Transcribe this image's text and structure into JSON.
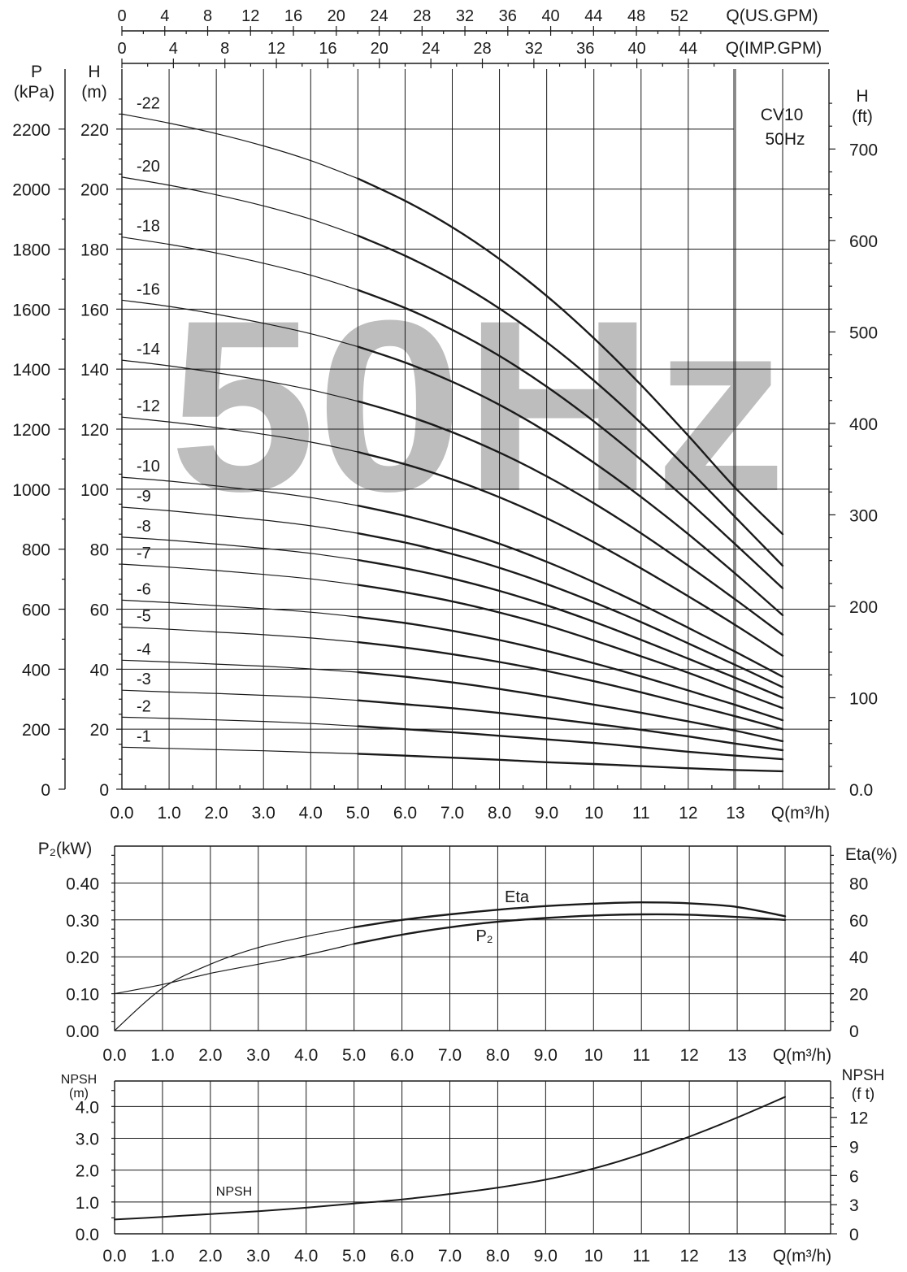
{
  "colors": {
    "line": "#1a1a1a",
    "grid": "#1a1a1a",
    "watermark": "#bdbdbd",
    "background": "#ffffff"
  },
  "chart_data": [
    {
      "type": "line",
      "id": "head",
      "watermark": "50Hz",
      "annotation": [
        "CV10",
        "50Hz"
      ],
      "x_label": "Q(m³/h)",
      "x_ticks": [
        "0.0",
        "1.0",
        "2.0",
        "3.0",
        "4.0",
        "5.0",
        "6.0",
        "7.0",
        "8.0",
        "9.0",
        "10",
        "11",
        "12",
        "13"
      ],
      "xlim": [
        0,
        14
      ],
      "top_axes": [
        {
          "label": "Q(US.GPM)",
          "ticks": [
            "0",
            "4",
            "8",
            "12",
            "16",
            "20",
            "24",
            "28",
            "32",
            "36",
            "40",
            "44",
            "48",
            "52"
          ],
          "values": [
            0,
            4,
            8,
            12,
            16,
            20,
            24,
            28,
            32,
            36,
            40,
            44,
            48,
            52
          ]
        },
        {
          "label": "Q(IMP.GPM)",
          "ticks": [
            "0",
            "4",
            "8",
            "12",
            "16",
            "20",
            "24",
            "28",
            "32",
            "36",
            "40",
            "44"
          ],
          "values": [
            0,
            4,
            8,
            12,
            16,
            20,
            24,
            28,
            32,
            36,
            40,
            44
          ]
        }
      ],
      "left_axes": [
        {
          "label": [
            "P",
            "(kPa)"
          ],
          "ticks": [
            "0",
            "200",
            "400",
            "600",
            "800",
            "1000",
            "1200",
            "1400",
            "1600",
            "1800",
            "2000",
            "2200"
          ]
        },
        {
          "label": [
            "H",
            "(m)"
          ],
          "ticks": [
            "0",
            "20",
            "40",
            "60",
            "80",
            "100",
            "120",
            "140",
            "160",
            "180",
            "200",
            "220"
          ]
        }
      ],
      "right_axis": {
        "label": [
          "H",
          "(ft)"
        ],
        "ticks": [
          "0.0",
          "100",
          "200",
          "300",
          "400",
          "500",
          "600",
          "700"
        ],
        "values": [
          0,
          100,
          200,
          300,
          400,
          500,
          600,
          700
        ]
      },
      "ylim": [
        0,
        240
      ],
      "x": [
        0,
        1,
        2,
        3,
        4,
        5,
        6,
        7,
        8,
        9,
        10,
        11,
        12,
        13,
        14
      ],
      "series": [
        {
          "name": "-1",
          "values": [
            14,
            13.6,
            13.2,
            12.8,
            12.3,
            11.8,
            11.2,
            10.5,
            9.8,
            9,
            8.4,
            7.7,
            7,
            6.4,
            6
          ]
        },
        {
          "name": "-2",
          "values": [
            24,
            23.6,
            23.1,
            22.6,
            21.9,
            21,
            20,
            19,
            17.8,
            16.6,
            15.4,
            14,
            12.5,
            11.2,
            10
          ]
        },
        {
          "name": "-3",
          "values": [
            33,
            32.4,
            31.9,
            31.3,
            30.6,
            29.6,
            28.3,
            27,
            25.4,
            23.7,
            21.8,
            19.8,
            17.6,
            15.2,
            13
          ]
        },
        {
          "name": "-4",
          "values": [
            43,
            42.4,
            41.7,
            41,
            40.1,
            39,
            37.5,
            35.6,
            33.4,
            30.9,
            28.2,
            25.5,
            22.6,
            19.5,
            16
          ]
        },
        {
          "name": "-5",
          "values": [
            54,
            53.3,
            52.4,
            51.5,
            50.4,
            49,
            47.2,
            45,
            42.4,
            39.4,
            36,
            32.3,
            28.3,
            24.3,
            20
          ]
        },
        {
          "name": "-6",
          "values": [
            63,
            62.2,
            61.2,
            60.2,
            59,
            57.4,
            55.4,
            52.8,
            49.7,
            46.1,
            42,
            37.6,
            32.9,
            28.1,
            23
          ]
        },
        {
          "name": "-7",
          "values": [
            75,
            74,
            72.9,
            71.6,
            70.1,
            68.1,
            65.6,
            62.6,
            58.9,
            54.6,
            49.6,
            44.3,
            38.8,
            32.9,
            27
          ]
        },
        {
          "name": "-8",
          "values": [
            84,
            83,
            81.7,
            80.3,
            78.6,
            76.4,
            73.6,
            70.2,
            66.1,
            61.3,
            55.8,
            49.8,
            43.5,
            37.1,
            30.5
          ]
        },
        {
          "name": "-9",
          "values": [
            94,
            92.8,
            91.3,
            89.7,
            87.8,
            85.3,
            82.2,
            78.4,
            73.8,
            68.4,
            62.3,
            55.7,
            48.6,
            41.4,
            34
          ]
        },
        {
          "name": "-10",
          "values": [
            104,
            102.7,
            101.1,
            99.3,
            97.2,
            94.5,
            91.1,
            86.9,
            81.8,
            75.8,
            69,
            61.6,
            53.8,
            45.8,
            37.5
          ]
        },
        {
          "name": "-12",
          "values": [
            124,
            122.4,
            120.5,
            118.3,
            115.7,
            112.4,
            108.3,
            103.3,
            97.3,
            90.3,
            82.3,
            73.6,
            64.3,
            54.7,
            44.5
          ]
        },
        {
          "name": "-14",
          "values": [
            143,
            141.1,
            138.8,
            136.2,
            133.1,
            129.3,
            124.7,
            119,
            112.2,
            104.3,
            95.3,
            85.3,
            74.5,
            63.2,
            51.5
          ]
        },
        {
          "name": "-16",
          "values": [
            163,
            160.9,
            158.3,
            155.3,
            151.8,
            147.5,
            142.2,
            135.8,
            128.1,
            119.1,
            108.8,
            97.4,
            85,
            71.8,
            58
          ]
        },
        {
          "name": "-18",
          "values": [
            184,
            181.6,
            178.7,
            175.3,
            171.3,
            166.4,
            160.4,
            153.1,
            144.4,
            134.2,
            122.6,
            109.8,
            96,
            81.6,
            67
          ]
        },
        {
          "name": "-20",
          "values": [
            204,
            201.3,
            198.1,
            194.4,
            190,
            184.5,
            177.8,
            169.8,
            160.2,
            149,
            136.2,
            122,
            106.6,
            90.6,
            74.5
          ]
        },
        {
          "name": "-22",
          "values": [
            225,
            222,
            218.5,
            214.4,
            209.5,
            203.5,
            196.1,
            187.3,
            176.7,
            164.4,
            150.3,
            134.7,
            117.8,
            100.4,
            85
          ]
        }
      ]
    },
    {
      "type": "line",
      "id": "power-efficiency",
      "x_label": "Q(m³/h)",
      "x_ticks": [
        "0.0",
        "1.0",
        "2.0",
        "3.0",
        "4.0",
        "5.0",
        "6.0",
        "7.0",
        "8.0",
        "9.0",
        "10",
        "11",
        "12",
        "13"
      ],
      "xlim": [
        0,
        14
      ],
      "left_axis": {
        "label": "P₂(kW)",
        "ticks": [
          "0.00",
          "0.10",
          "0.20",
          "0.30",
          "0.40"
        ],
        "ylim": [
          0,
          0.5
        ]
      },
      "right_axis": {
        "label": "Eta(%)",
        "ticks": [
          "0",
          "20",
          "40",
          "60",
          "80"
        ],
        "ylim": [
          0,
          100
        ]
      },
      "x": [
        0,
        1,
        2,
        3,
        4,
        5,
        6,
        7,
        8,
        9,
        10,
        11,
        12,
        13,
        14
      ],
      "series": [
        {
          "name": "Eta",
          "axis": "right",
          "values": [
            0,
            23,
            36,
            45,
            51,
            56,
            60,
            63,
            65.5,
            67.5,
            68.8,
            69.5,
            69,
            67,
            62
          ]
        },
        {
          "name": "P₂",
          "axis": "left",
          "values": [
            0.1,
            0.125,
            0.155,
            0.18,
            0.205,
            0.235,
            0.26,
            0.28,
            0.295,
            0.305,
            0.312,
            0.315,
            0.314,
            0.308,
            0.3
          ]
        }
      ]
    },
    {
      "type": "line",
      "id": "npsh",
      "x_label": "Q(m³/h)",
      "x_ticks": [
        "0.0",
        "1.0",
        "2.0",
        "3.0",
        "4.0",
        "5.0",
        "6.0",
        "7.0",
        "8.0",
        "9.0",
        "10",
        "11",
        "12",
        "13"
      ],
      "xlim": [
        0,
        14
      ],
      "left_axis": {
        "label": [
          "NPSH",
          "(m)"
        ],
        "ticks": [
          "0.0",
          "1.0",
          "2.0",
          "3.0",
          "4.0"
        ],
        "ylim": [
          0,
          4.8
        ]
      },
      "right_axis": {
        "label": [
          "NPSH",
          "(f t)"
        ],
        "ticks": [
          "0",
          "3",
          "6",
          "9",
          "12"
        ],
        "values": [
          0,
          3,
          6,
          9,
          12
        ]
      },
      "x": [
        0,
        1,
        2,
        3,
        4,
        5,
        6,
        7,
        8,
        9,
        10,
        11,
        12,
        13,
        14
      ],
      "series": [
        {
          "name": "NPSH",
          "values": [
            0.45,
            0.53,
            0.62,
            0.71,
            0.82,
            0.95,
            1.08,
            1.25,
            1.45,
            1.7,
            2.05,
            2.5,
            3.05,
            3.65,
            4.3
          ]
        }
      ]
    }
  ]
}
